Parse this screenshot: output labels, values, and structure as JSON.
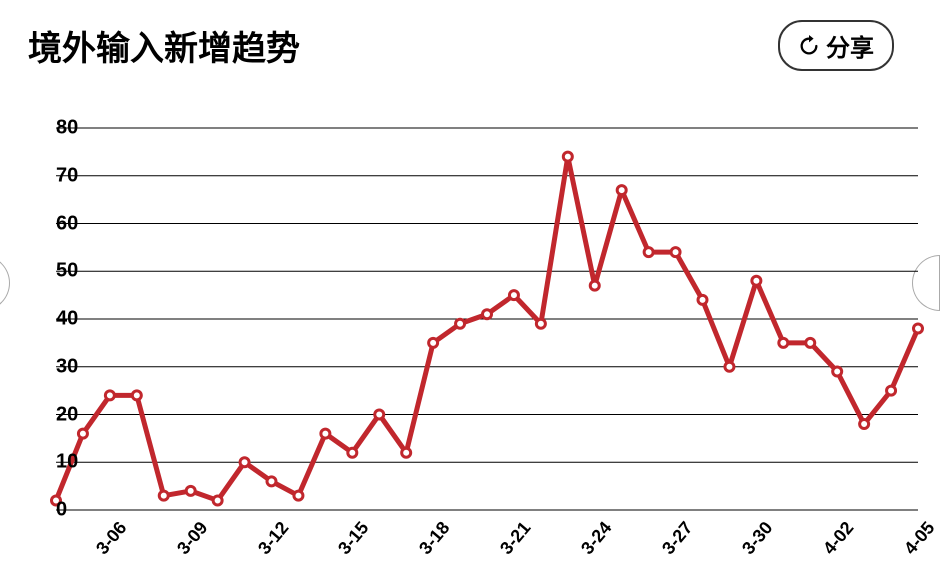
{
  "header": {
    "title": "境外输入新增趋势",
    "share_label": "分享"
  },
  "chart": {
    "type": "line",
    "background_color": "#ffffff",
    "grid_color": "#000000",
    "series_color": "#c1272d",
    "line_width": 5,
    "marker_radius": 4.5,
    "marker_fill": "#ffffff",
    "marker_stroke_width": 3,
    "ylim": [
      0,
      80
    ],
    "ytick_step": 10,
    "yticks": [
      0,
      10,
      20,
      30,
      40,
      50,
      60,
      70,
      80
    ],
    "xlabels_shown": [
      "3-06",
      "3-09",
      "3-12",
      "3-15",
      "3-18",
      "3-21",
      "3-24",
      "3-27",
      "3-30",
      "4-02",
      "4-05"
    ],
    "xtick_rotation_deg": -50,
    "title_fontsize": 34,
    "ylabel_fontsize": 20,
    "xlabel_fontsize": 18,
    "points": [
      {
        "x": "3-04",
        "y": 2
      },
      {
        "x": "3-05",
        "y": 16
      },
      {
        "x": "3-06",
        "y": 24
      },
      {
        "x": "3-07",
        "y": 24
      },
      {
        "x": "3-08",
        "y": 3
      },
      {
        "x": "3-09",
        "y": 4
      },
      {
        "x": "3-10",
        "y": 2
      },
      {
        "x": "3-11",
        "y": 10
      },
      {
        "x": "3-12",
        "y": 6
      },
      {
        "x": "3-13",
        "y": 3
      },
      {
        "x": "3-14",
        "y": 16
      },
      {
        "x": "3-15",
        "y": 12
      },
      {
        "x": "3-16",
        "y": 20
      },
      {
        "x": "3-17",
        "y": 12
      },
      {
        "x": "3-18",
        "y": 35
      },
      {
        "x": "3-19",
        "y": 39
      },
      {
        "x": "3-20",
        "y": 41
      },
      {
        "x": "3-21",
        "y": 45
      },
      {
        "x": "3-22",
        "y": 39
      },
      {
        "x": "3-23",
        "y": 74
      },
      {
        "x": "3-24",
        "y": 47
      },
      {
        "x": "3-25",
        "y": 67
      },
      {
        "x": "3-26",
        "y": 54
      },
      {
        "x": "3-27",
        "y": 54
      },
      {
        "x": "3-28",
        "y": 44
      },
      {
        "x": "3-29",
        "y": 30
      },
      {
        "x": "3-30",
        "y": 48
      },
      {
        "x": "3-31",
        "y": 35
      },
      {
        "x": "4-01",
        "y": 35
      },
      {
        "x": "4-02",
        "y": 29
      },
      {
        "x": "4-03",
        "y": 18
      },
      {
        "x": "4-04",
        "y": 25
      },
      {
        "x": "4-05",
        "y": 38
      }
    ]
  }
}
